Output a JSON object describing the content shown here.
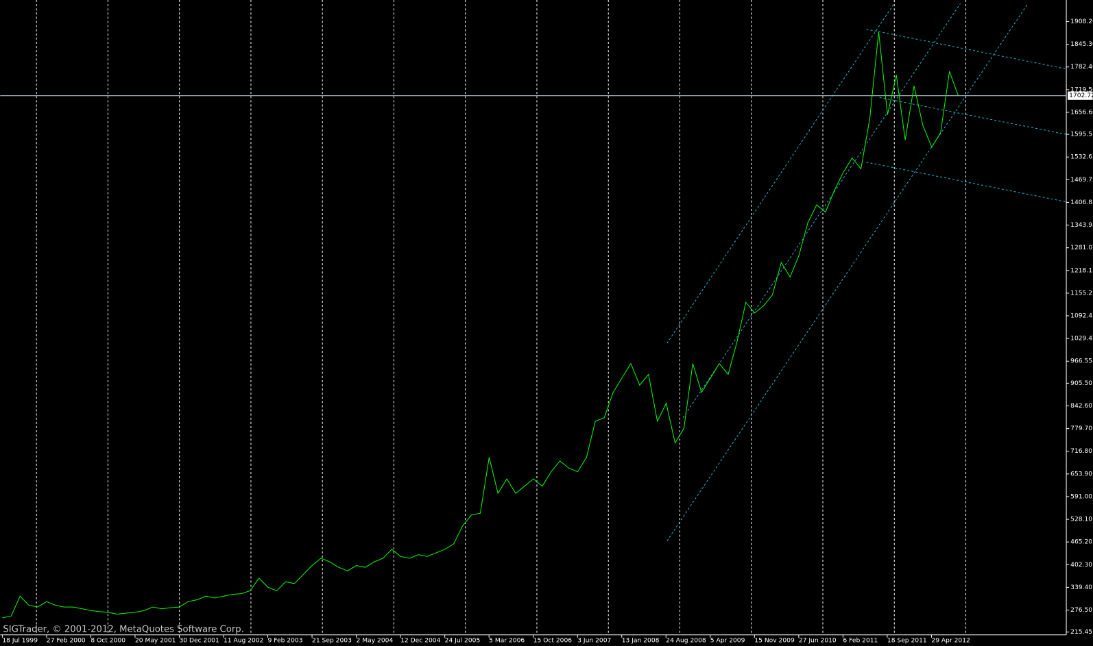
{
  "chart_data": {
    "type": "line",
    "watermark": "SIGTrader, © 2001-2012, MetaQuotes Software Corp.",
    "x_labels": [
      "18 Jul 1999",
      "27 Feb 2000",
      "8 Oct 2000",
      "20 May 2001",
      "30 Dec 2001",
      "11 Aug 2002",
      "9 Feb 2003",
      "21 Sep 2003",
      "2 May 2004",
      "12 Dec 2004",
      "24 Jul 2005",
      "5 Mar 2006",
      "15 Oct 2006",
      "3 Jun 2007",
      "13 Jan 2008",
      "24 Aug 2008",
      "5 Apr 2009",
      "15 Nov 2009",
      "27 Jun 2010",
      "6 Feb 2011",
      "18 Sep 2011",
      "29 Apr 2012"
    ],
    "series": [
      {
        "color": "#00ff00",
        "values": [
          255,
          260,
          315,
          290,
          285,
          300,
          290,
          285,
          285,
          280,
          275,
          272,
          270,
          265,
          268,
          270,
          275,
          285,
          280,
          283,
          285,
          300,
          305,
          315,
          310,
          315,
          320,
          322,
          330,
          365,
          340,
          330,
          355,
          350,
          375,
          400,
          420,
          410,
          395,
          385,
          400,
          395,
          410,
          420,
          445,
          425,
          420,
          430,
          425,
          435,
          445,
          460,
          510,
          540,
          545,
          700,
          600,
          640,
          600,
          620,
          640,
          620,
          660,
          690,
          670,
          660,
          700,
          800,
          810,
          880,
          920,
          960,
          900,
          930,
          800,
          850,
          740,
          780,
          960,
          880,
          920,
          960,
          930,
          1020,
          1130,
          1100,
          1120,
          1150,
          1240,
          1200,
          1260,
          1350,
          1400,
          1380,
          1440,
          1490,
          1530,
          1500,
          1640,
          1880,
          1650,
          1760,
          1580,
          1730,
          1620,
          1560,
          1600,
          1770,
          1702.72
        ]
      }
    ],
    "current_price": {
      "value": 1702.72,
      "label": "1702.72"
    },
    "ylim": [
      207.7,
      1964.2
    ],
    "yticks": [
      {
        "value": 215.45,
        "label": "215.45"
      },
      {
        "value": 276.5,
        "label": "276.50"
      },
      {
        "value": 339.4,
        "label": "339.40"
      },
      {
        "value": 402.3,
        "label": "402.30"
      },
      {
        "value": 465.2,
        "label": "465.20"
      },
      {
        "value": 528.1,
        "label": "528.10"
      },
      {
        "value": 591,
        "label": "591.00"
      },
      {
        "value": 653.9,
        "label": "653.90"
      },
      {
        "value": 716.8,
        "label": "716.80"
      },
      {
        "value": 779.7,
        "label": "779.70"
      },
      {
        "value": 842.6,
        "label": "842.60"
      },
      {
        "value": 905.5,
        "label": "905.50"
      },
      {
        "value": 966.55,
        "label": "966.55"
      },
      {
        "value": 1029.45,
        "label": "1029.45"
      },
      {
        "value": 1092.45,
        "label": "1092.45"
      },
      {
        "value": 1155.25,
        "label": "1155.25"
      },
      {
        "value": 1218.15,
        "label": "1218.15"
      },
      {
        "value": 1281.05,
        "label": "1281.05"
      },
      {
        "value": 1343.95,
        "label": "1343.95"
      },
      {
        "value": 1406.85,
        "label": "1406.85"
      },
      {
        "value": 1469.75,
        "label": "1469.75"
      },
      {
        "value": 1532.65,
        "label": "1532.65"
      },
      {
        "value": 1595.55,
        "label": "1595.55"
      },
      {
        "value": 1656.6,
        "label": "1656.60"
      },
      {
        "value": 1719.5,
        "label": "1719.50"
      },
      {
        "value": 1782.4,
        "label": "1782.40"
      },
      {
        "value": 1845.3,
        "label": "1845.30"
      },
      {
        "value": 1908.2,
        "label": "1908.20"
      }
    ]
  }
}
